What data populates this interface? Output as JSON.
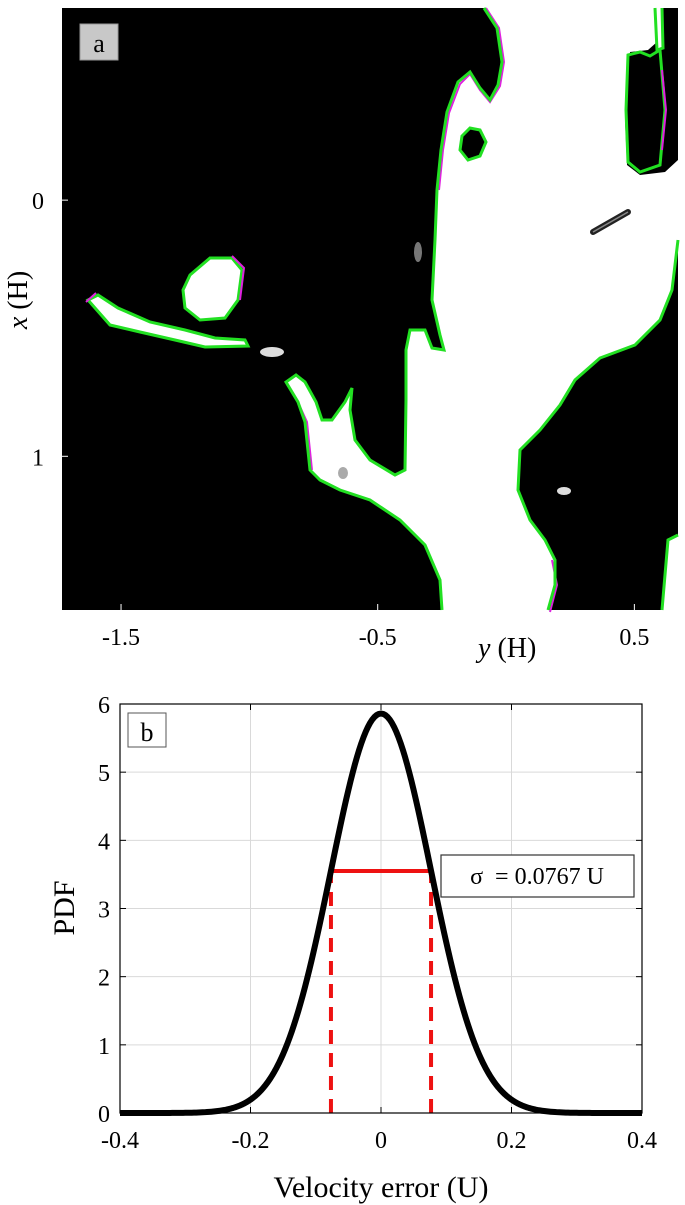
{
  "panel_a": {
    "label": "a",
    "xlabel_var": "y",
    "xlabel_unit": " (H)",
    "ylabel_var": "x",
    "ylabel_unit": " (H)",
    "xticks": [
      -1.5,
      -0.5,
      0.5
    ],
    "xtick_labels": [
      "-1.5",
      "-0.5",
      "0.5"
    ],
    "yticks": [
      0,
      1
    ],
    "ytick_labels": [
      "0",
      "1"
    ],
    "xlim": [
      -1.73,
      0.67
    ],
    "ylim": [
      -0.75,
      1.6
    ],
    "y_reversed": true,
    "colors": {
      "background": "#000000",
      "foreground": "#ffffff",
      "contour_primary": "#22e022",
      "contour_secondary": "#e020e0"
    }
  },
  "chart_data": {
    "type": "line",
    "label": "b",
    "xlabel": "Velocity error (U)",
    "ylabel": "PDF",
    "xlim": [
      -0.4,
      0.4
    ],
    "ylim": [
      0,
      6
    ],
    "xticks": [
      -0.4,
      -0.2,
      0,
      0.2,
      0.4
    ],
    "xtick_labels": [
      "-0.4",
      "-0.2",
      "0",
      "0.2",
      "0.4"
    ],
    "yticks": [
      0,
      1,
      2,
      3,
      4,
      5,
      6
    ],
    "ytick_labels": [
      "0",
      "1",
      "2",
      "3",
      "4",
      "5",
      "6"
    ],
    "grid": true,
    "series": [
      {
        "color": "#000000",
        "x": [
          -0.4,
          -0.35,
          -0.3,
          -0.25,
          -0.2,
          -0.18,
          -0.16,
          -0.14,
          -0.12,
          -0.1,
          -0.08,
          -0.06,
          -0.04,
          -0.02,
          0,
          0.02,
          0.04,
          0.06,
          0.08,
          0.1,
          0.12,
          0.14,
          0.16,
          0.18,
          0.2,
          0.25,
          0.3,
          0.35,
          0.4
        ],
        "y": [
          0.0,
          0.0,
          0.0,
          0.03,
          0.2,
          0.37,
          0.66,
          1.09,
          1.68,
          2.44,
          3.31,
          4.2,
          5.01,
          5.61,
          5.86,
          5.61,
          5.01,
          4.2,
          3.31,
          2.44,
          1.68,
          1.09,
          0.66,
          0.37,
          0.2,
          0.03,
          0.0,
          0.0,
          0.0
        ]
      }
    ],
    "sigma": {
      "value": 0.0767,
      "half_max_height": 3.55,
      "color": "#ee1111",
      "annotation": "σ  = 0.0767 U"
    }
  }
}
